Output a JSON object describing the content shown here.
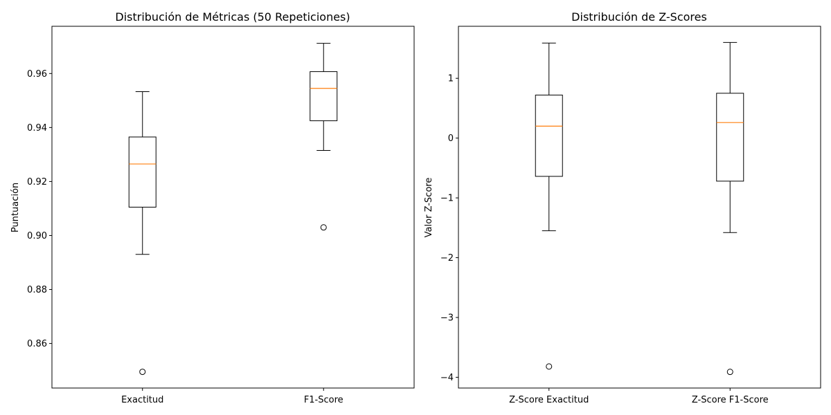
{
  "chart_data": [
    {
      "type": "boxplot",
      "title": "Distribución de Métricas (50 Repeticiones)",
      "xlabel": "",
      "ylabel": "Puntuación",
      "ylim": [
        0.8435,
        0.9775
      ],
      "yticks": [
        0.86,
        0.88,
        0.9,
        0.92,
        0.94,
        0.96
      ],
      "ytick_labels": [
        "0.86",
        "0.88",
        "0.90",
        "0.92",
        "0.94",
        "0.96"
      ],
      "categories": [
        "Exactitud",
        "F1-Score"
      ],
      "boxes": [
        {
          "label": "Exactitud",
          "whisker_low": 0.893,
          "q1": 0.9105,
          "median": 0.9265,
          "q3": 0.9365,
          "whisker_high": 0.9533,
          "outliers": [
            0.8495
          ]
        },
        {
          "label": "F1-Score",
          "whisker_low": 0.9315,
          "q1": 0.9425,
          "median": 0.9545,
          "q3": 0.9607,
          "whisker_high": 0.9712,
          "outliers": [
            0.903
          ]
        }
      ]
    },
    {
      "type": "boxplot",
      "title": "Distribución de Z-Scores",
      "xlabel": "",
      "ylabel": "Valor Z-Score",
      "ylim": [
        -4.18,
        1.87
      ],
      "yticks": [
        -4,
        -3,
        -2,
        -1,
        0,
        1
      ],
      "ytick_labels": [
        "−4",
        "−3",
        "−2",
        "−1",
        "0",
        "1"
      ],
      "categories": [
        "Z-Score Exactitud",
        "Z-Score F1-Score"
      ],
      "boxes": [
        {
          "label": "Z-Score Exactitud",
          "whisker_low": -1.55,
          "q1": -0.64,
          "median": 0.2,
          "q3": 0.72,
          "whisker_high": 1.59,
          "outliers": [
            -3.82
          ]
        },
        {
          "label": "Z-Score F1-Score",
          "whisker_low": -1.58,
          "q1": -0.72,
          "median": 0.26,
          "q3": 0.75,
          "whisker_high": 1.6,
          "outliers": [
            -3.91
          ]
        }
      ]
    }
  ],
  "colors": {
    "box": "#000000",
    "median": "#ff7f0e",
    "background": "#ffffff"
  }
}
